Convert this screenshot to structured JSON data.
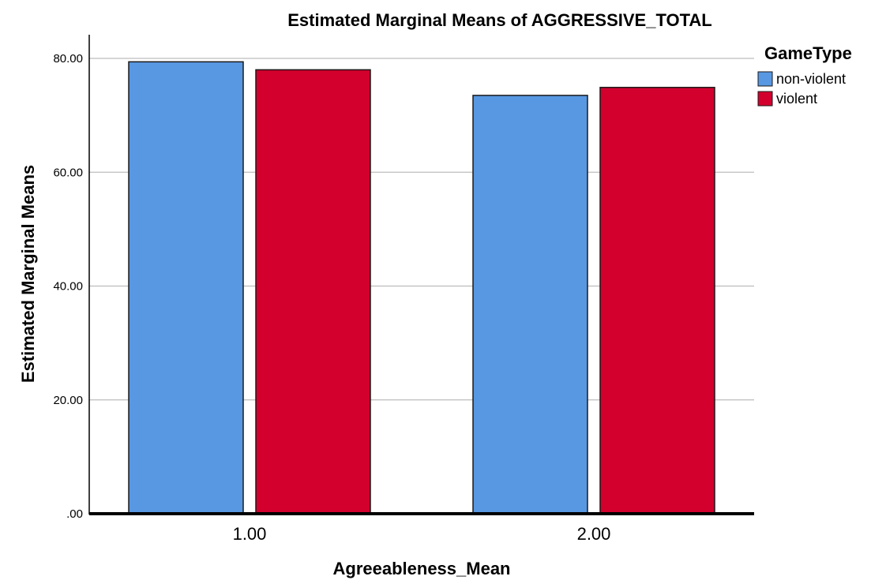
{
  "chart_data": {
    "type": "bar",
    "title": "Estimated Marginal Means of AGGRESSIVE_TOTAL",
    "xlabel": "Agreeableness_Mean",
    "ylabel": "Estimated Marginal Means",
    "categories": [
      "1.00",
      "2.00"
    ],
    "series": [
      {
        "name": "non-violent",
        "values": [
          79.4,
          73.5
        ],
        "color": "#5898e2"
      },
      {
        "name": "violent",
        "values": [
          78.0,
          74.9
        ],
        "color": "#d3002d"
      }
    ],
    "ylim": [
      0,
      80
    ],
    "yticks": [
      {
        "value": 0,
        "label": ".00"
      },
      {
        "value": 20,
        "label": "20.00"
      },
      {
        "value": 40,
        "label": "40.00"
      },
      {
        "value": 60,
        "label": "60.00"
      },
      {
        "value": 80,
        "label": "80.00"
      }
    ],
    "grid": true,
    "legend": {
      "title": "GameType",
      "placement": "right"
    }
  }
}
